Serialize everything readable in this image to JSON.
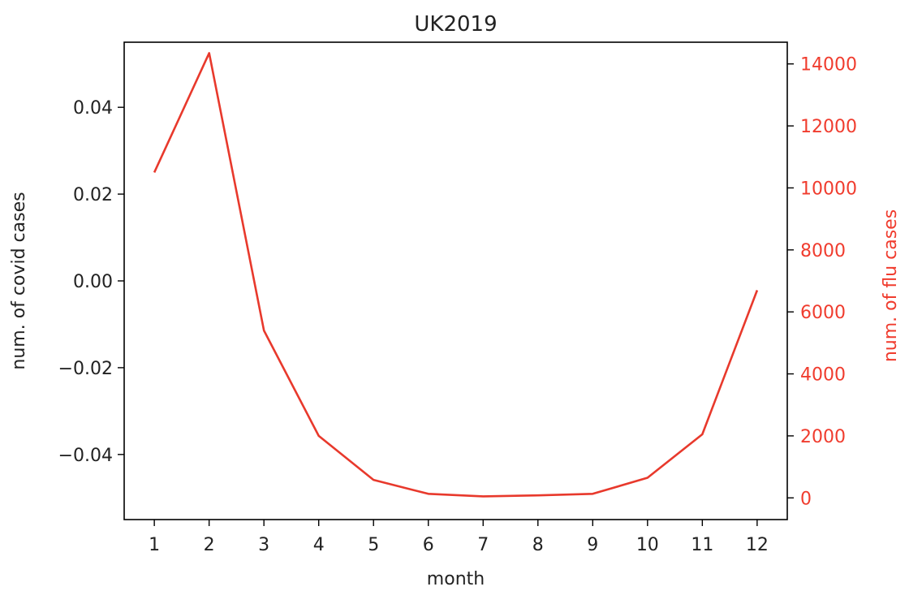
{
  "chart_data": {
    "type": "line",
    "title": "UK2019",
    "xlabel": "month",
    "ylabel_left": "num. of covid cases",
    "ylabel_right": "num. of flu cases",
    "x": [
      1,
      2,
      3,
      4,
      5,
      6,
      7,
      8,
      9,
      10,
      11,
      12
    ],
    "x_ticks": [
      "1",
      "2",
      "3",
      "4",
      "5",
      "6",
      "7",
      "8",
      "9",
      "10",
      "11",
      "12"
    ],
    "xlim": [
      0.45,
      12.55
    ],
    "left_axis": {
      "ylim": [
        -0.055,
        0.055
      ],
      "ticks": [
        0.04,
        0.02,
        0.0,
        -0.02,
        -0.04
      ],
      "tick_labels": [
        "0.04",
        "0.02",
        "0.00",
        "−0.02",
        "−0.04"
      ]
    },
    "right_axis": {
      "ylim": [
        -700,
        14700
      ],
      "ticks": [
        0,
        2000,
        4000,
        6000,
        8000,
        10000,
        12000,
        14000
      ],
      "tick_labels": [
        "0",
        "2000",
        "4000",
        "6000",
        "8000",
        "10000",
        "12000",
        "14000"
      ],
      "color": "#f03c2e"
    },
    "series": [
      {
        "axis": "right",
        "color": "#e8392c",
        "values": [
          10500,
          14350,
          5400,
          2000,
          580,
          130,
          50,
          80,
          130,
          650,
          2050,
          6700
        ]
      }
    ],
    "grid": false,
    "legend": "none"
  }
}
